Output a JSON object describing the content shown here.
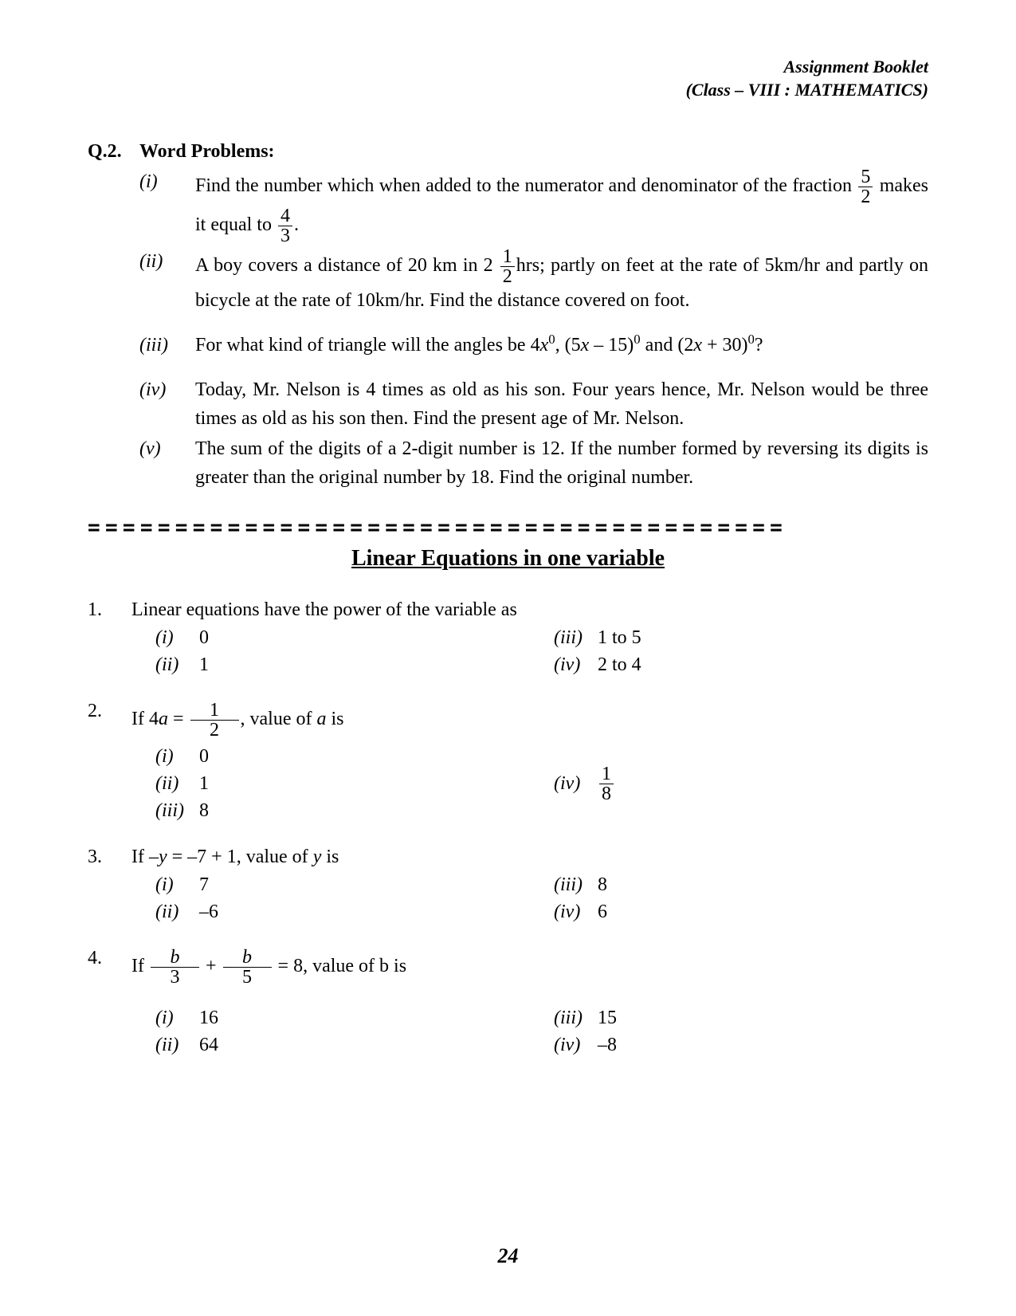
{
  "header": {
    "line1": "Assignment Booklet",
    "line2": "(Class – VIII : MATHEMATICS)"
  },
  "q2": {
    "num": "Q.2.",
    "title": "Word Problems:",
    "items": [
      {
        "n": "(i)",
        "pre": "Find the number which when added to the numerator and denominator of the fraction ",
        "frac1_num": "5",
        "frac1_den": "2",
        "mid": " makes it equal to ",
        "frac2_num": "4",
        "frac2_den": "3",
        "post": "."
      },
      {
        "n": "(ii)",
        "pre": "A boy covers a distance of 20 km in 2 ",
        "frac_num": "1",
        "frac_den": "2",
        "mid": "hrs; partly on feet at the rate of 5km/hr and partly on bicycle at the rate of 10km/hr. Find the distance covered on foot."
      },
      {
        "n": "(iii)",
        "text_a": "For what kind of triangle will the angles be 4",
        "var1": "x",
        "sup1": "0",
        "text_b": ", (5",
        "var2": "x",
        "text_c": " – 15)",
        "sup2": "0",
        "text_d": " and (2",
        "var3": "x",
        "text_e": " + 30)",
        "sup3": "0",
        "text_f": "?"
      },
      {
        "n": "(iv)",
        "text": "Today, Mr. Nelson is 4 times as old as his son. Four years hence, Mr. Nelson would be three times as old as his son then. Find the present age of Mr. Nelson."
      },
      {
        "n": "(v)",
        "text": "The sum of the digits of a 2-digit number is 12. If the number formed by reversing its digits is greater than the original number by 18. Find the original number."
      }
    ]
  },
  "divider": "========================================",
  "section_title": "Linear Equations in one variable",
  "mcq": [
    {
      "num": "1.",
      "stem": "Linear equations have the power of the variable as",
      "opts_l": [
        [
          "(i)",
          "0"
        ],
        [
          "(ii)",
          "1"
        ]
      ],
      "opts_r": [
        [
          "(iii)",
          "1 to 5"
        ],
        [
          "(iv)",
          "2 to 4"
        ]
      ]
    },
    {
      "num": "2.",
      "stem_pre": "If 4",
      "stem_var": "a",
      "stem_eq": " = ",
      "stem_frac_num": "1",
      "stem_frac_den": "2",
      "stem_post": ", value of ",
      "stem_var2": "a",
      "stem_post2": " is",
      "opts_l": [
        [
          "(i)",
          "0"
        ],
        [
          "(ii)",
          "1"
        ],
        [
          "(iii)",
          "8"
        ]
      ],
      "opts_r_frac": {
        "label": "(iv)",
        "num": "1",
        "den": "8"
      }
    },
    {
      "num": "3.",
      "stem_pre": "If –",
      "stem_var": "y",
      "stem_mid": " = –7 + 1, value of ",
      "stem_var2": "y",
      "stem_post": " is",
      "opts_l": [
        [
          "(i)",
          "7"
        ],
        [
          "(ii)",
          "–6"
        ]
      ],
      "opts_r": [
        [
          "(iii)",
          "8"
        ],
        [
          "(iv)",
          "6"
        ]
      ]
    },
    {
      "num": "4.",
      "stem_pre": "If ",
      "f1_num": "b",
      "f1_den": "3",
      "plus": " + ",
      "f2_num": "b",
      "f2_den": "5",
      "stem_eq": " = 8, value of b is",
      "opts_l": [
        [
          "(i)",
          "16"
        ],
        [
          "(ii)",
          "64"
        ]
      ],
      "opts_r": [
        [
          "(iii)",
          "15"
        ],
        [
          "(iv)",
          "–8"
        ]
      ]
    }
  ],
  "page_number": "24"
}
